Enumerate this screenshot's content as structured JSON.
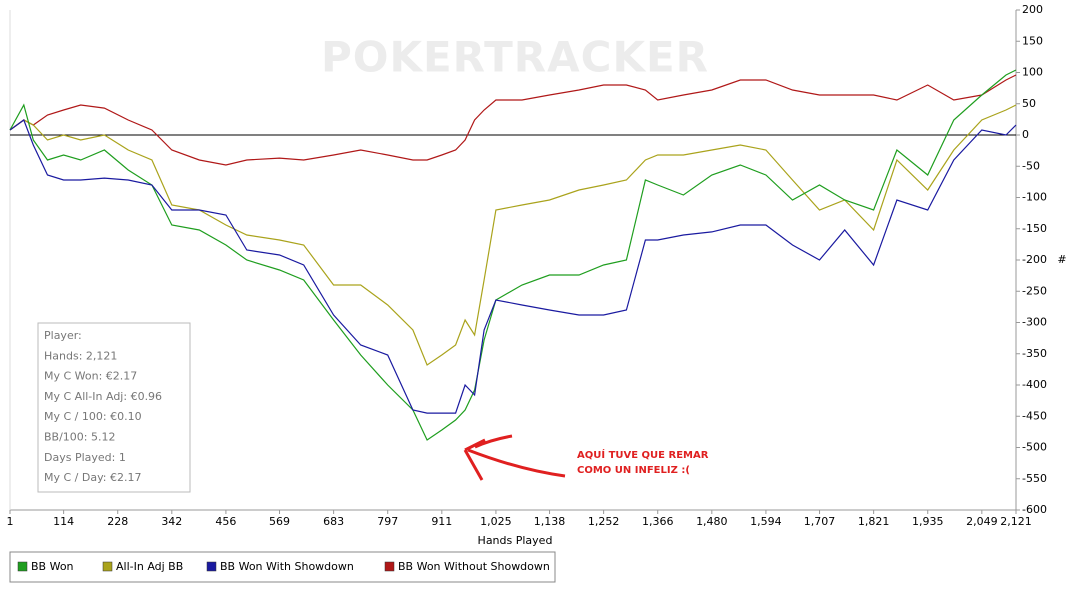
{
  "chart_data": {
    "type": "line",
    "watermark": "POKERTRACKER",
    "xlabel": "Hands Played",
    "ylabel": "#",
    "xlim": [
      1,
      2121
    ],
    "ylim": [
      -600,
      200
    ],
    "xticks": [
      1,
      114,
      228,
      342,
      456,
      569,
      683,
      797,
      911,
      {
        "value": 1025,
        "label": "1,025"
      },
      {
        "value": 1138,
        "label": "1,138"
      },
      {
        "value": 1252,
        "label": "1,252"
      },
      {
        "value": 1366,
        "label": "1,366"
      },
      {
        "value": 1480,
        "label": "1,480"
      },
      {
        "value": 1594,
        "label": "1,594"
      },
      {
        "value": 1707,
        "label": "1,707"
      },
      {
        "value": 1821,
        "label": "1,821"
      },
      {
        "value": 1935,
        "label": "1,935"
      },
      {
        "value": 2049,
        "label": "2,049"
      },
      {
        "value": 2121,
        "label": "2,121"
      }
    ],
    "yticks": [
      200,
      150,
      100,
      50,
      0,
      -50,
      -100,
      -150,
      -200,
      -250,
      -300,
      -350,
      -400,
      -450,
      -500,
      -550,
      -600
    ],
    "zero_line": true,
    "legend": "bottom-left",
    "x": [
      1,
      30,
      50,
      80,
      114,
      150,
      200,
      250,
      300,
      342,
      400,
      456,
      500,
      569,
      620,
      683,
      740,
      797,
      850,
      880,
      911,
      940,
      960,
      980,
      1000,
      1025,
      1080,
      1138,
      1200,
      1252,
      1300,
      1340,
      1366,
      1420,
      1480,
      1540,
      1594,
      1650,
      1707,
      1760,
      1821,
      1870,
      1935,
      1990,
      2049,
      2100,
      2121
    ],
    "series": [
      {
        "name": "BB Won",
        "color": "#1f9e1f",
        "values": [
          8,
          48,
          -8,
          -40,
          -32,
          -40,
          -24,
          -56,
          -80,
          -144,
          -152,
          -176,
          -200,
          -216,
          -232,
          -296,
          -352,
          -400,
          -440,
          -488,
          -472,
          -456,
          -440,
          -408,
          -328,
          -264,
          -240,
          -224,
          -224,
          -208,
          -200,
          -72,
          -80,
          -96,
          -64,
          -48,
          -64,
          -104,
          -80,
          -104,
          -120,
          -24,
          -64,
          24,
          64,
          96,
          104
        ]
      },
      {
        "name": "All-In Adj BB",
        "color": "#aaa31c",
        "values": [
          8,
          24,
          16,
          -8,
          0,
          -8,
          0,
          -24,
          -40,
          -112,
          -120,
          -144,
          -160,
          -168,
          -176,
          -240,
          -240,
          -272,
          -312,
          -368,
          -352,
          -336,
          -296,
          -320,
          -232,
          -120,
          -112,
          -104,
          -88,
          -80,
          -72,
          -40,
          -32,
          -32,
          -24,
          -16,
          -24,
          -72,
          -120,
          -104,
          -152,
          -40,
          -88,
          -24,
          24,
          40,
          48
        ]
      },
      {
        "name": "BB Won With Showdown",
        "color": "#1a1aa0",
        "values": [
          8,
          24,
          -16,
          -64,
          -72,
          -72,
          -69,
          -72,
          -80,
          -120,
          -120,
          -128,
          -184,
          -192,
          -208,
          -288,
          -336,
          -352,
          -440,
          -445,
          -445,
          -445,
          -400,
          -416,
          -312,
          -264,
          -272,
          -280,
          -288,
          -288,
          -280,
          -168,
          -168,
          -160,
          -155,
          -144,
          -144,
          -176,
          -200,
          -152,
          -208,
          -104,
          -120,
          -40,
          8,
          0,
          16
        ]
      },
      {
        "name": "BB Won Without Showdown",
        "color": "#b01818",
        "values": [
          8,
          24,
          16,
          32,
          40,
          48,
          43,
          24,
          8,
          -24,
          -40,
          -48,
          -40,
          -37,
          -40,
          -32,
          -24,
          -32,
          -40,
          -40,
          -32,
          -24,
          -8,
          24,
          40,
          56,
          56,
          64,
          72,
          80,
          80,
          72,
          56,
          64,
          72,
          88,
          88,
          72,
          64,
          64,
          64,
          56,
          80,
          56,
          64,
          88,
          96
        ]
      }
    ],
    "stats": [
      "Player:",
      "Hands: 2,121",
      "My C Won: €2.17",
      "My C All-In Adj: €0.96",
      "My C / 100: €0.10",
      "BB/100: 5.12",
      "Days Played: 1",
      "My C / Day: €2.17"
    ],
    "annotations": [
      "AQUÍ TUVE QUE REMAR",
      "COMO UN INFELIZ :("
    ]
  }
}
